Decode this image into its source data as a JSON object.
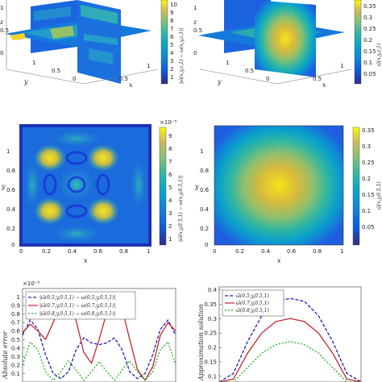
{
  "chart_data": [
    {
      "id": "p1",
      "type": "heatmap",
      "xlabel": "x",
      "ylabel": "y",
      "zlabel": "z",
      "x_ticks": [
        "0.5",
        "1"
      ],
      "y_ticks": [
        "1",
        "0.5",
        "0"
      ],
      "z_ticks": [
        "1",
        "0.5",
        "0"
      ],
      "colorbar": {
        "ticks": [
          "10",
          "9",
          "8",
          "7",
          "6",
          "5",
          "4",
          "3",
          "2",
          "1"
        ],
        "scale": "×10⁻⁵",
        "label": "|ω̃(x,y,z,1) − ω(x,y,z,1)|",
        "range": [
          0,
          10.5
        ]
      }
    },
    {
      "id": "p2",
      "type": "heatmap",
      "xlabel": "x",
      "ylabel": "y",
      "zlabel": "z",
      "x_ticks": [
        "0.5",
        "1"
      ],
      "y_ticks": [
        "1",
        "0.5",
        "0"
      ],
      "z_ticks": [
        "1",
        "0.5",
        "0"
      ],
      "colorbar": {
        "ticks": [
          "0.35",
          "0.3",
          "0.25",
          "0.2",
          "0.15",
          "0.1",
          "0.05"
        ],
        "label": "ω̃(x,y,z,1)",
        "range": [
          0,
          0.37
        ]
      }
    },
    {
      "id": "p3",
      "type": "heatmap",
      "xlabel": "x",
      "ylabel": "y",
      "x_ticks": [
        "0",
        "0.2",
        "0.4",
        "0.6",
        "0.8",
        "1"
      ],
      "y_ticks": [
        "1",
        "0.8",
        "0.6",
        "0.4",
        "0.2",
        "0"
      ],
      "colorbar": {
        "ticks": [
          "9",
          "8",
          "7",
          "6",
          "5",
          "4",
          "3",
          "2",
          "1"
        ],
        "scale": "×10⁻⁵",
        "label": "|ω̃(x,y,0.5,1) − ω(x,y,0.5,1)|",
        "range": [
          0,
          9.5
        ]
      }
    },
    {
      "id": "p4",
      "type": "heatmap",
      "xlabel": "x",
      "ylabel": "y",
      "x_ticks": [
        "0",
        "0.2",
        "0.4",
        "0.6",
        "0.8",
        "1"
      ],
      "y_ticks": [
        "1",
        "0.8",
        "0.6",
        "0.4",
        "0.2",
        "0"
      ],
      "colorbar": {
        "ticks": [
          "0.35",
          "0.3",
          "0.25",
          "0.2",
          "0.15",
          "0.1",
          "0.05"
        ],
        "label": "ω̃(x,y,0.5,1)",
        "range": [
          0,
          0.37
        ]
      }
    },
    {
      "id": "p5",
      "type": "line",
      "ylabel": "Absolute error",
      "scale": "×10⁻⁵",
      "y_ticks": [
        "1",
        "0.9",
        "0.8",
        "0.7",
        "0.6",
        "0.5",
        "0.4",
        "0.3",
        "0.2",
        "0.1"
      ],
      "ylim": [
        0,
        1.1
      ],
      "xlim": [
        0,
        1
      ],
      "x": [
        0,
        0.05,
        0.1,
        0.15,
        0.2,
        0.25,
        0.3,
        0.35,
        0.4,
        0.45,
        0.5,
        0.55,
        0.6,
        0.65,
        0.7,
        0.75,
        0.8,
        0.85,
        0.9,
        0.95,
        1
      ],
      "series": [
        {
          "name": "|ω̃(0.5,y,0.5,1) − ω(0.5,y,0.5,1)|",
          "color": "#1f1fb4",
          "dash": "4,2",
          "values": [
            0.55,
            0.73,
            0.62,
            0.32,
            0.1,
            0.04,
            0.12,
            0.38,
            0.52,
            0.46,
            0.44,
            0.46,
            0.52,
            0.38,
            0.12,
            0.04,
            0.1,
            0.32,
            0.62,
            0.73,
            0.55
          ]
        },
        {
          "name": "|ω̃(0.7,y,0.5,1) − ω(0.7,y,0.5,1)|",
          "color": "#c0282e",
          "dash": "",
          "values": [
            0.58,
            0.68,
            0.6,
            0.5,
            0.7,
            0.92,
            0.96,
            0.72,
            0.35,
            0.22,
            0.5,
            0.82,
            0.99,
            0.86,
            0.5,
            0.15,
            0.02,
            0.18,
            0.55,
            0.7,
            0.6
          ]
        },
        {
          "name": "|ω̃(0.8,y,0.5,1) − ω(0.8,y,0.5,1)|",
          "color": "#20b020",
          "dash": "2,2",
          "values": [
            0.2,
            0.47,
            0.38,
            0.12,
            0.02,
            0.12,
            0.25,
            0.14,
            0.02,
            0.12,
            0.24,
            0.12,
            0.02,
            0.14,
            0.25,
            0.12,
            0.02,
            0.12,
            0.38,
            0.47,
            0.2
          ]
        }
      ]
    },
    {
      "id": "p6",
      "type": "line",
      "ylabel": "Approximation solution",
      "y_ticks": [
        "0.4",
        "0.35",
        "0.3",
        "0.25",
        "0.2",
        "0.15",
        "0.1"
      ],
      "ylim": [
        0.08,
        0.41
      ],
      "xlim": [
        0,
        1
      ],
      "x": [
        0,
        0.1,
        0.2,
        0.3,
        0.4,
        0.5,
        0.6,
        0.7,
        0.8,
        0.9,
        1
      ],
      "series": [
        {
          "name": "ω̃(0.5,y,0.5,1)",
          "color": "#1f1fb4",
          "dash": "4,2",
          "values": [
            0,
            0.11,
            0.22,
            0.31,
            0.36,
            0.37,
            0.36,
            0.31,
            0.22,
            0.11,
            0
          ]
        },
        {
          "name": "ω̃(0.7,y,0.5,1)",
          "color": "#c0282e",
          "dash": "",
          "values": [
            0,
            0.09,
            0.18,
            0.25,
            0.29,
            0.3,
            0.29,
            0.25,
            0.18,
            0.09,
            0
          ]
        },
        {
          "name": "ω̃(0.8,y,0.5,1)",
          "color": "#20b020",
          "dash": "2,2",
          "values": [
            0,
            0.065,
            0.13,
            0.18,
            0.21,
            0.22,
            0.21,
            0.18,
            0.13,
            0.065,
            0
          ]
        }
      ]
    }
  ]
}
